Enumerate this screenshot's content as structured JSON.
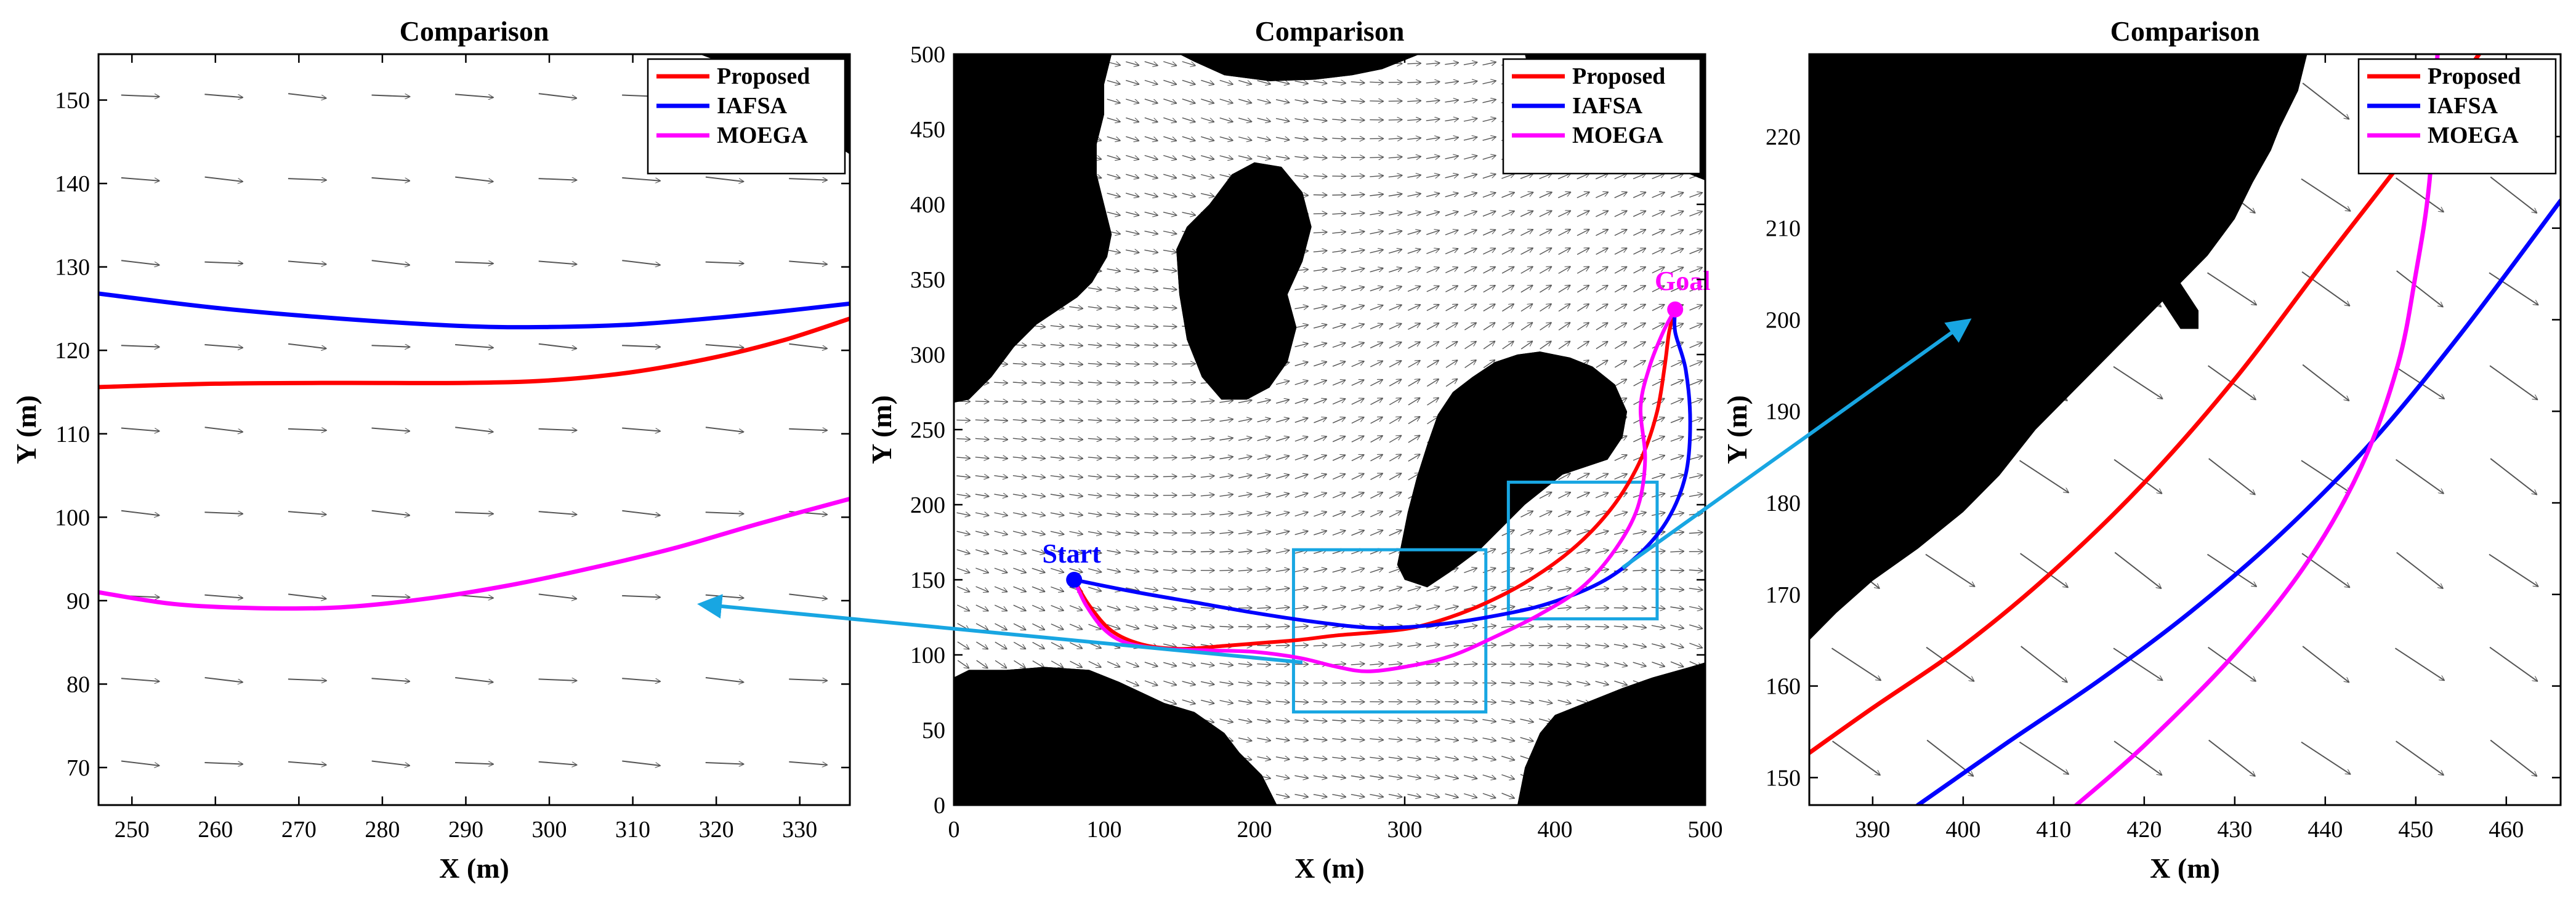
{
  "chart_data": [
    {
      "type": "line",
      "title": "Comparison",
      "xlabel": "X (m)",
      "ylabel": "Y (m)",
      "xlim": [
        246,
        336
      ],
      "ylim": [
        65.5,
        155.5
      ],
      "xticks": [
        250,
        260,
        270,
        280,
        290,
        300,
        310,
        320,
        330
      ],
      "yticks": [
        70,
        80,
        90,
        100,
        110,
        120,
        130,
        140,
        150
      ],
      "legend_position": "top-right",
      "series": [
        {
          "name": "Proposed",
          "color": "#ff0000",
          "points": [
            [
              246,
              115.6
            ],
            [
              260,
              116
            ],
            [
              275,
              116.1
            ],
            [
              290,
              116.1
            ],
            [
              300,
              116.4
            ],
            [
              310,
              117.4
            ],
            [
              320,
              119.2
            ],
            [
              328,
              121.2
            ],
            [
              336,
              123.8
            ]
          ]
        },
        {
          "name": "IAFSA",
          "color": "#0000ff",
          "points": [
            [
              246,
              126.8
            ],
            [
              260,
              125.1
            ],
            [
              275,
              123.8
            ],
            [
              290,
              122.9
            ],
            [
              300,
              122.8
            ],
            [
              310,
              123.1
            ],
            [
              320,
              123.9
            ],
            [
              328,
              124.7
            ],
            [
              336,
              125.6
            ]
          ]
        },
        {
          "name": "MOEGA",
          "color": "#ff00ff",
          "points": [
            [
              246,
              91
            ],
            [
              255,
              89.6
            ],
            [
              265,
              89.1
            ],
            [
              275,
              89.2
            ],
            [
              285,
              90.2
            ],
            [
              295,
              91.8
            ],
            [
              305,
              93.9
            ],
            [
              315,
              96.3
            ],
            [
              325,
              99.2
            ],
            [
              336,
              102.2
            ]
          ]
        }
      ],
      "obstacle": [
        [
          306,
          155.5
        ],
        [
          318,
          155.5
        ],
        [
          322,
          154
        ],
        [
          326,
          151
        ],
        [
          330,
          148
        ],
        [
          333,
          145.5
        ],
        [
          336,
          143.5
        ],
        [
          336,
          155.5
        ],
        [
          306,
          155.5
        ]
      ],
      "obstacle_islands": [
        [
          [
            312,
            150
          ],
          [
            315,
            150
          ],
          [
            315,
            146
          ],
          [
            319,
            146
          ],
          [
            319,
            142
          ],
          [
            316,
            142
          ],
          [
            316,
            145
          ],
          [
            312,
            145
          ]
        ]
      ]
    },
    {
      "type": "line",
      "title": "Comparison",
      "xlabel": "X (m)",
      "ylabel": "Y (m)",
      "xlim": [
        0,
        500
      ],
      "ylim": [
        0,
        500
      ],
      "xticks": [
        0,
        100,
        200,
        300,
        400,
        500
      ],
      "yticks": [
        0,
        50,
        100,
        150,
        200,
        250,
        300,
        350,
        400,
        450,
        500
      ],
      "legend_position": "top-right",
      "annotations": [
        {
          "text": "Start",
          "x": 80,
          "y": 150,
          "color": "#0000ff"
        },
        {
          "text": "Goal",
          "x": 480,
          "y": 330,
          "color": "#ff00ff"
        }
      ],
      "zoom_boxes": [
        {
          "x": [
            226,
            354
          ],
          "y": [
            62,
            170
          ],
          "color": "#18a6e2"
        },
        {
          "x": [
            369,
            468
          ],
          "y": [
            124,
            215
          ],
          "color": "#18a6e2"
        }
      ],
      "series": [
        {
          "name": "Proposed",
          "color": "#ff0000",
          "points": [
            [
              80,
              150
            ],
            [
              90,
              133
            ],
            [
              105,
              116
            ],
            [
              125,
              107
            ],
            [
              150,
              104
            ],
            [
              180,
              106
            ],
            [
              205,
              108
            ],
            [
              230,
              110
            ],
            [
              255,
              113
            ],
            [
              280,
              115
            ],
            [
              305,
              118
            ],
            [
              330,
              125
            ],
            [
              355,
              135
            ],
            [
              380,
              148
            ],
            [
              405,
              165
            ],
            [
              425,
              183
            ],
            [
              443,
              205
            ],
            [
              458,
              232
            ],
            [
              468,
              262
            ],
            [
              473,
              292
            ],
            [
              476,
              315
            ],
            [
              480,
              330
            ]
          ]
        },
        {
          "name": "IAFSA",
          "color": "#0000ff",
          "points": [
            [
              80,
              150
            ],
            [
              120,
              142
            ],
            [
              160,
              135
            ],
            [
              200,
              128
            ],
            [
              240,
              122
            ],
            [
              280,
              118
            ],
            [
              320,
              120
            ],
            [
              360,
              126
            ],
            [
              395,
              134
            ],
            [
              430,
              148
            ],
            [
              455,
              166
            ],
            [
              475,
              190
            ],
            [
              487,
              220
            ],
            [
              490,
              255
            ],
            [
              487,
              290
            ],
            [
              480,
              315
            ],
            [
              480,
              330
            ]
          ]
        },
        {
          "name": "MOEGA",
          "color": "#ff00ff",
          "points": [
            [
              80,
              150
            ],
            [
              88,
              133
            ],
            [
              100,
              117
            ],
            [
              115,
              108
            ],
            [
              140,
              104
            ],
            [
              170,
              103
            ],
            [
              200,
              102
            ],
            [
              230,
              98
            ],
            [
              255,
              92
            ],
            [
              275,
              89
            ],
            [
              300,
              92
            ],
            [
              330,
              99
            ],
            [
              360,
              112
            ],
            [
              390,
              127
            ],
            [
              418,
              145
            ],
            [
              440,
              170
            ],
            [
              455,
              198
            ],
            [
              460,
              230
            ],
            [
              457,
              265
            ],
            [
              463,
              292
            ],
            [
              472,
              315
            ],
            [
              480,
              330
            ]
          ]
        }
      ],
      "obstacles": [
        [
          [
            0,
            268
          ],
          [
            10,
            270
          ],
          [
            25,
            285
          ],
          [
            40,
            305
          ],
          [
            55,
            320
          ],
          [
            70,
            330
          ],
          [
            82,
            338
          ],
          [
            92,
            348
          ],
          [
            102,
            365
          ],
          [
            105,
            380
          ],
          [
            100,
            400
          ],
          [
            95,
            420
          ],
          [
            95,
            440
          ],
          [
            100,
            460
          ],
          [
            100,
            480
          ],
          [
            105,
            500
          ],
          [
            0,
            500
          ]
        ],
        [
          [
            150,
            500
          ],
          [
            160,
            495
          ],
          [
            180,
            486
          ],
          [
            210,
            482
          ],
          [
            240,
            483
          ],
          [
            265,
            486
          ],
          [
            285,
            490
          ],
          [
            300,
            496
          ],
          [
            310,
            500
          ]
        ],
        [
          [
            380,
            500
          ],
          [
            385,
            478
          ],
          [
            398,
            470
          ],
          [
            415,
            462
          ],
          [
            430,
            457
          ],
          [
            445,
            452
          ],
          [
            460,
            445
          ],
          [
            475,
            430
          ],
          [
            490,
            420
          ],
          [
            500,
            416
          ],
          [
            500,
            500
          ]
        ],
        [
          [
            148,
            370
          ],
          [
            155,
            385
          ],
          [
            170,
            400
          ],
          [
            185,
            420
          ],
          [
            200,
            428
          ],
          [
            218,
            425
          ],
          [
            232,
            408
          ],
          [
            238,
            385
          ],
          [
            232,
            362
          ],
          [
            222,
            340
          ],
          [
            228,
            318
          ],
          [
            222,
            295
          ],
          [
            210,
            278
          ],
          [
            195,
            270
          ],
          [
            178,
            270
          ],
          [
            165,
            285
          ],
          [
            155,
            310
          ],
          [
            150,
            340
          ]
        ],
        [
          [
            295,
            160
          ],
          [
            300,
            150
          ],
          [
            315,
            145
          ],
          [
            330,
            155
          ],
          [
            350,
            170
          ],
          [
            365,
            185
          ],
          [
            380,
            200
          ],
          [
            395,
            212
          ],
          [
            405,
            220
          ],
          [
            420,
            225
          ],
          [
            435,
            230
          ],
          [
            445,
            245
          ],
          [
            448,
            262
          ],
          [
            440,
            280
          ],
          [
            425,
            292
          ],
          [
            410,
            298
          ],
          [
            390,
            302
          ],
          [
            375,
            300
          ],
          [
            360,
            295
          ],
          [
            345,
            285
          ],
          [
            332,
            275
          ],
          [
            322,
            260
          ],
          [
            315,
            240
          ],
          [
            308,
            218
          ],
          [
            302,
            195
          ],
          [
            298,
            175
          ]
        ],
        [
          [
            0,
            0
          ],
          [
            0,
            85
          ],
          [
            10,
            90
          ],
          [
            35,
            90
          ],
          [
            60,
            92
          ],
          [
            90,
            90
          ],
          [
            110,
            82
          ],
          [
            125,
            75
          ],
          [
            140,
            68
          ],
          [
            160,
            62
          ],
          [
            180,
            48
          ],
          [
            190,
            35
          ],
          [
            205,
            20
          ],
          [
            215,
            0
          ]
        ],
        [
          [
            375,
            0
          ],
          [
            380,
            25
          ],
          [
            390,
            48
          ],
          [
            400,
            60
          ],
          [
            420,
            68
          ],
          [
            445,
            78
          ],
          [
            465,
            85
          ],
          [
            490,
            92
          ],
          [
            500,
            95
          ],
          [
            500,
            0
          ]
        ]
      ]
    },
    {
      "type": "line",
      "title": "Comparison",
      "xlabel": "X (m)",
      "ylabel": "Y (m)",
      "xlim": [
        383,
        466
      ],
      "ylim": [
        147,
        229
      ],
      "xticks": [
        390,
        400,
        410,
        420,
        430,
        440,
        450,
        460
      ],
      "yticks": [
        150,
        160,
        170,
        180,
        190,
        200,
        210,
        220
      ],
      "legend_position": "top-right",
      "series": [
        {
          "name": "Proposed",
          "color": "#ff0000",
          "points": [
            [
              383,
              152.7
            ],
            [
              390,
              157.6
            ],
            [
              400,
              164.4
            ],
            [
              410,
              172.6
            ],
            [
              420,
              182.2
            ],
            [
              430,
              193.5
            ],
            [
              440,
              206.5
            ],
            [
              450,
              219.3
            ],
            [
              457,
              229
            ]
          ]
        },
        {
          "name": "IAFSA",
          "color": "#0000ff",
          "points": [
            [
              395,
              147
            ],
            [
              405,
              153.9
            ],
            [
              415,
              160.6
            ],
            [
              425,
              168
            ],
            [
              435,
              176.5
            ],
            [
              445,
              186.5
            ],
            [
              455,
              198.5
            ],
            [
              466,
              213
            ]
          ]
        },
        {
          "name": "MOEGA",
          "color": "#ff00ff",
          "points": [
            [
              412.5,
              147
            ],
            [
              420,
              153.5
            ],
            [
              430,
              163.5
            ],
            [
              438,
              173.5
            ],
            [
              444,
              184
            ],
            [
              448,
              195
            ],
            [
              450,
              205
            ],
            [
              451.5,
              215
            ],
            [
              452.4,
              229
            ]
          ]
        }
      ],
      "obstacle": [
        [
          383,
          165
        ],
        [
          386,
          168
        ],
        [
          390,
          171.5
        ],
        [
          395,
          175
        ],
        [
          400,
          179
        ],
        [
          404,
          183
        ],
        [
          408,
          188
        ],
        [
          412,
          192
        ],
        [
          416,
          196
        ],
        [
          420,
          200
        ],
        [
          424,
          204
        ],
        [
          427,
          207
        ],
        [
          430,
          211
        ],
        [
          432,
          215
        ],
        [
          434,
          218.5
        ],
        [
          435,
          221
        ],
        [
          437,
          225
        ],
        [
          438,
          229
        ],
        [
          383,
          229
        ]
      ],
      "obstacle_islands": [
        [
          [
            418,
            204
          ],
          [
            421,
            209
          ],
          [
            423,
            211
          ],
          [
            424,
            204
          ],
          [
            426,
            201
          ],
          [
            426,
            199
          ],
          [
            424,
            199
          ],
          [
            422,
            202
          ],
          [
            420,
            203
          ]
        ]
      ]
    }
  ]
}
